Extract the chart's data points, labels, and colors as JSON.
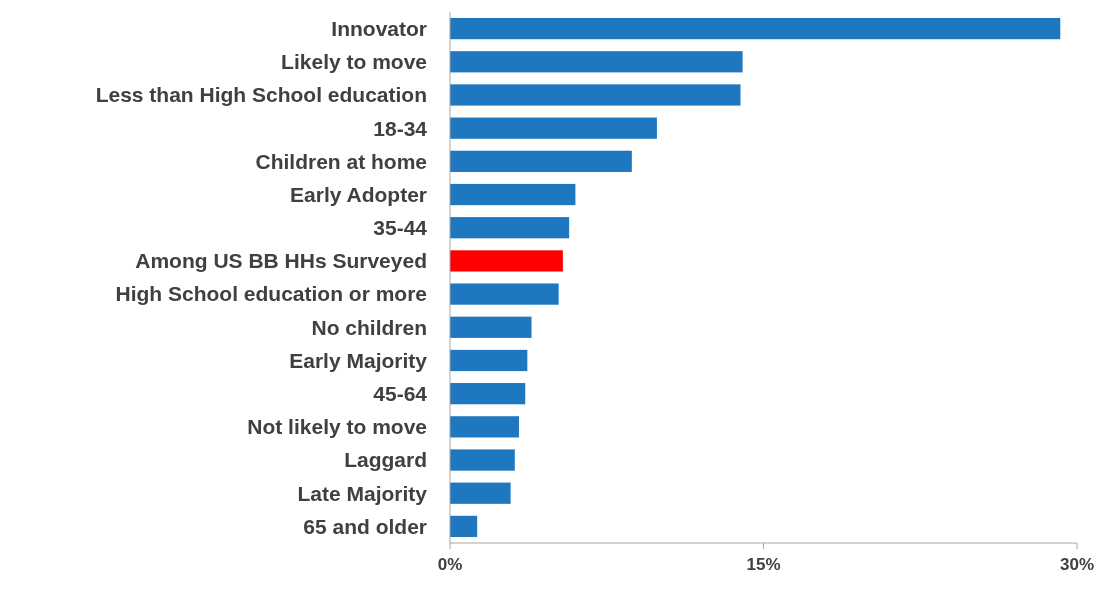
{
  "chart_data": {
    "type": "bar",
    "orientation": "horizontal",
    "categories": [
      "Innovator",
      "Likely to move",
      "Less than High School education",
      "18-34",
      "Children at home",
      "Early Adopter",
      "35-44",
      "Among US BB HHs Surveyed",
      "High School education or more",
      "No children",
      "Early Majority",
      "45-64",
      "Not likely to move",
      "Laggard",
      "Late Majority",
      "65 and older"
    ],
    "values": [
      29.2,
      14.0,
      13.9,
      9.9,
      8.7,
      6.0,
      5.7,
      5.4,
      5.2,
      3.9,
      3.7,
      3.6,
      3.3,
      3.1,
      2.9,
      1.3
    ],
    "colors": [
      "#1f77c0",
      "#1f77c0",
      "#1f77c0",
      "#1f77c0",
      "#1f77c0",
      "#1f77c0",
      "#1f77c0",
      "#ff0000",
      "#1f77c0",
      "#1f77c0",
      "#1f77c0",
      "#1f77c0",
      "#1f77c0",
      "#1f77c0",
      "#1f77c0",
      "#1f77c0"
    ],
    "xlim": [
      0,
      30
    ],
    "xticks": [
      {
        "value": 0,
        "label": "0%"
      },
      {
        "value": 15,
        "label": "15%"
      },
      {
        "value": 30,
        "label": "30%"
      }
    ],
    "grid": false
  }
}
